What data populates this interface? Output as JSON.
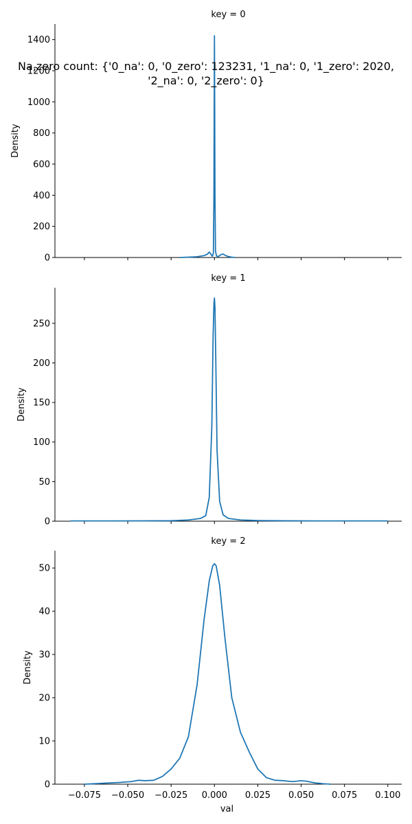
{
  "suptitle": "Na,zero count: {'0_na': 0, '0_zero': 123231, '1_na': 0, '1_zero': 2020,\n'2_na': 0, '2_zero': 0}",
  "chart_data": [
    {
      "type": "line",
      "title": "key = 0",
      "xlabel": "",
      "ylabel": "Density",
      "xlim": [
        -0.092,
        0.108
      ],
      "ylim": [
        0,
        1500
      ],
      "yticks": [
        0,
        200,
        400,
        600,
        800,
        1000,
        1200,
        1400
      ],
      "xticks": [],
      "grid": false,
      "color": "#1f77b4",
      "x": [
        -0.02,
        -0.015,
        -0.01,
        -0.006,
        -0.004,
        -0.003,
        -0.002,
        -0.0012,
        -0.0006,
        -0.0003,
        -0.0001,
        0.0,
        0.0001,
        0.0003,
        0.0006,
        0.0012,
        0.002,
        0.003,
        0.004,
        0.005,
        0.006,
        0.008,
        0.01,
        0.012
      ],
      "y": [
        0,
        2,
        5,
        12,
        22,
        35,
        20,
        8,
        30,
        400,
        1100,
        1425,
        1100,
        400,
        40,
        10,
        6,
        12,
        20,
        22,
        15,
        6,
        2,
        0
      ]
    },
    {
      "type": "line",
      "title": "key = 1",
      "xlabel": "",
      "ylabel": "Density",
      "xlim": [
        -0.092,
        0.108
      ],
      "ylim": [
        0,
        295
      ],
      "yticks": [
        0,
        50,
        100,
        150,
        200,
        250
      ],
      "xticks": [],
      "grid": false,
      "color": "#1f77b4",
      "x": [
        -0.083,
        -0.06,
        -0.04,
        -0.025,
        -0.015,
        -0.008,
        -0.005,
        -0.003,
        -0.0015,
        -0.0008,
        -0.0003,
        0.0,
        0.0003,
        0.0008,
        0.0015,
        0.003,
        0.005,
        0.008,
        0.015,
        0.025,
        0.04,
        0.06,
        0.08,
        0.1
      ],
      "y": [
        0.3,
        0.3,
        0.4,
        0.6,
        1.5,
        3.5,
        7,
        30,
        120,
        230,
        275,
        282,
        270,
        200,
        90,
        25,
        8,
        3.5,
        1.5,
        0.8,
        0.5,
        0.3,
        0.3,
        0.3
      ]
    },
    {
      "type": "line",
      "title": "key = 2",
      "xlabel": "val",
      "ylabel": "Density",
      "xlim": [
        -0.092,
        0.108
      ],
      "ylim": [
        0,
        54
      ],
      "yticks": [
        0,
        10,
        20,
        30,
        40,
        50
      ],
      "xticks": [
        -0.075,
        -0.05,
        -0.025,
        0.0,
        0.025,
        0.05,
        0.075,
        0.1
      ],
      "xticklabels": [
        "−0.075",
        "−0.050",
        "−0.025",
        "0.000",
        "0.025",
        "0.050",
        "0.075",
        "0.100"
      ],
      "grid": false,
      "color": "#1f77b4",
      "x": [
        -0.075,
        -0.065,
        -0.055,
        -0.048,
        -0.044,
        -0.04,
        -0.035,
        -0.03,
        -0.025,
        -0.02,
        -0.015,
        -0.01,
        -0.006,
        -0.003,
        -0.001,
        0.0,
        0.001,
        0.003,
        0.006,
        0.01,
        0.015,
        0.02,
        0.025,
        0.03,
        0.035,
        0.04,
        0.045,
        0.05,
        0.053,
        0.058,
        0.063,
        0.067
      ],
      "y": [
        0,
        0.2,
        0.4,
        0.6,
        0.9,
        0.8,
        0.9,
        1.8,
        3.5,
        6,
        11,
        23,
        38,
        47,
        50.5,
        51,
        50.5,
        46,
        34,
        20,
        12,
        7.5,
        3.5,
        1.5,
        0.9,
        0.8,
        0.6,
        0.8,
        0.7,
        0.3,
        0.1,
        0
      ]
    }
  ]
}
